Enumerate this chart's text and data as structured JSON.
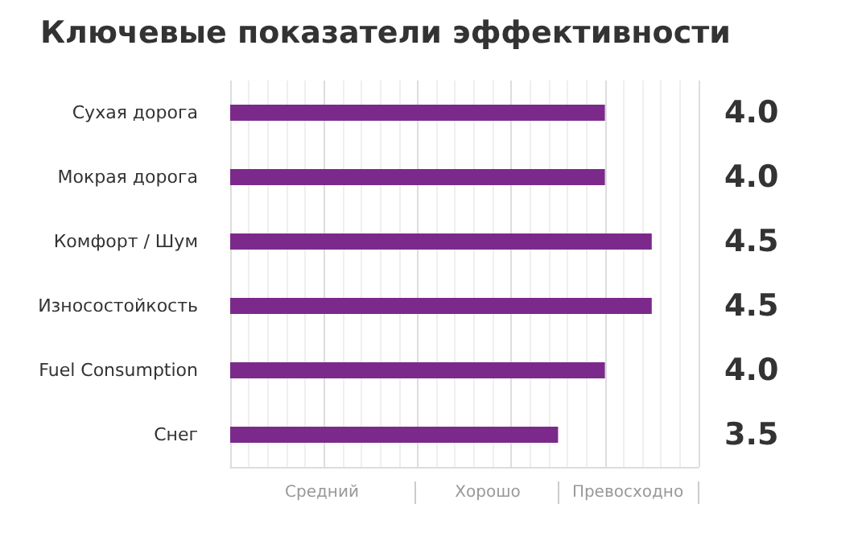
{
  "chart_data": {
    "type": "bar",
    "orientation": "horizontal",
    "title": "Ключевые показатели эффективности",
    "categories": [
      "Сухая дорога",
      "Мокрая дорога",
      "Комфорт / Шум",
      "Износостойкость",
      "Fuel Consumption",
      "Снег"
    ],
    "values": [
      4.0,
      4.0,
      4.5,
      4.5,
      4.0,
      3.5
    ],
    "value_labels": [
      "4.0",
      "4.0",
      "4.5",
      "4.5",
      "4.0",
      "3.5"
    ],
    "color": "#7b2a8b",
    "xlim": [
      0,
      5
    ],
    "annotations": [
      "Средний",
      "Хорошо",
      "Превосходно"
    ],
    "grid": true
  }
}
